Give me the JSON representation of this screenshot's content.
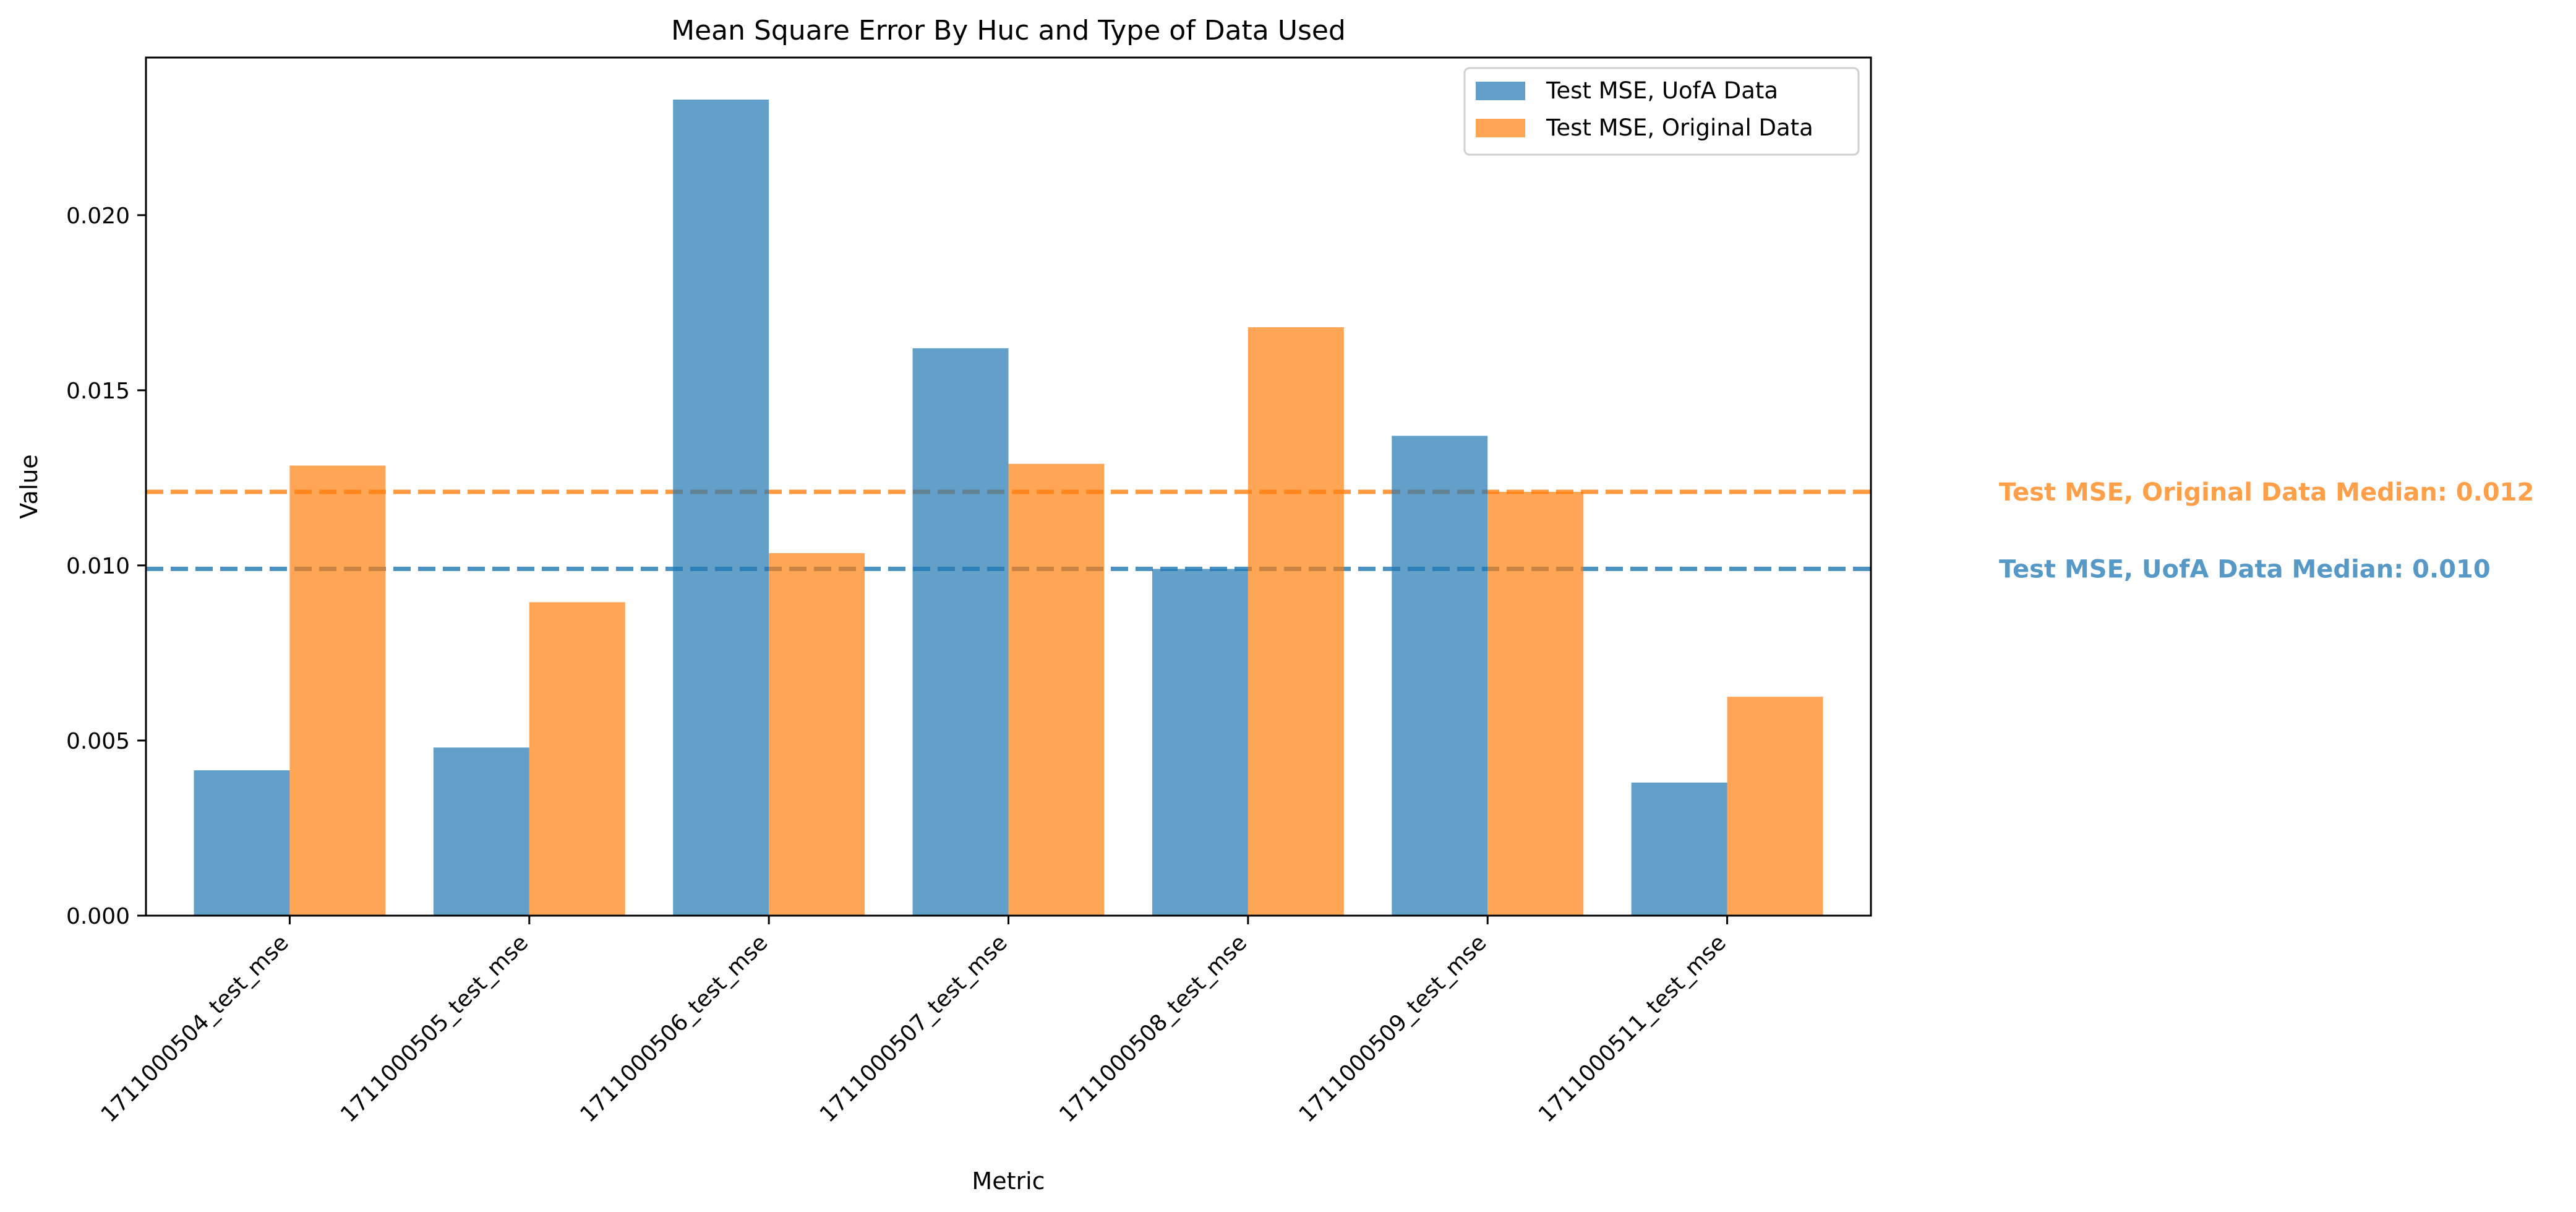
{
  "chart_data": {
    "type": "bar",
    "title": "Mean Square Error By Huc and Type of Data Used",
    "xlabel": "Metric",
    "ylabel": "Value",
    "ylim": [
      0,
      0.0245
    ],
    "yticks": [
      0.0,
      0.005,
      0.01,
      0.015,
      0.02
    ],
    "ytick_labels": [
      "0.000",
      "0.005",
      "0.010",
      "0.015",
      "0.020"
    ],
    "grid": false,
    "legend_position": "top-right",
    "categories": [
      "1711000504_test_mse",
      "1711000505_test_mse",
      "1711000506_test_mse",
      "1711000507_test_mse",
      "1711000508_test_mse",
      "1711000509_test_mse",
      "1711000511_test_mse"
    ],
    "series": [
      {
        "name": "Test MSE, UofA Data",
        "color": "#1f77b4",
        "values": [
          0.00415,
          0.0048,
          0.0233,
          0.0162,
          0.0099,
          0.0137,
          0.0038
        ]
      },
      {
        "name": "Test MSE, Original Data",
        "color": "#ff7f0e",
        "values": [
          0.01285,
          0.00895,
          0.01035,
          0.0129,
          0.0168,
          0.0121,
          0.00625
        ]
      }
    ],
    "reference_lines": [
      {
        "series": "Test MSE, Original Data",
        "value": 0.0121,
        "color": "#ff7f0e",
        "style": "dashed",
        "label": "Test MSE, Original Data Median: 0.012"
      },
      {
        "series": "Test MSE, UofA Data",
        "value": 0.0099,
        "color": "#1f77b4",
        "style": "dashed",
        "label": "Test MSE, UofA Data Median: 0.010"
      }
    ]
  }
}
